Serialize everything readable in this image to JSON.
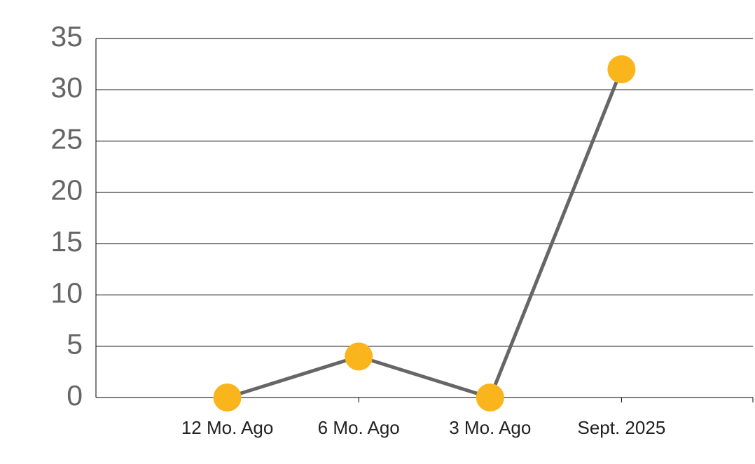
{
  "chart_data": {
    "type": "line",
    "categories": [
      "12 Mo. Ago",
      "6 Mo. Ago",
      "3 Mo. Ago",
      "Sept. 2025"
    ],
    "series": [
      {
        "values": [
          0,
          4,
          0,
          32
        ],
        "color": "#666666",
        "marker_color": "#f9b51b"
      }
    ],
    "ylim": [
      0,
      35
    ],
    "yticks": [
      0,
      5,
      10,
      15,
      20,
      25,
      30,
      35
    ],
    "grid": true
  }
}
